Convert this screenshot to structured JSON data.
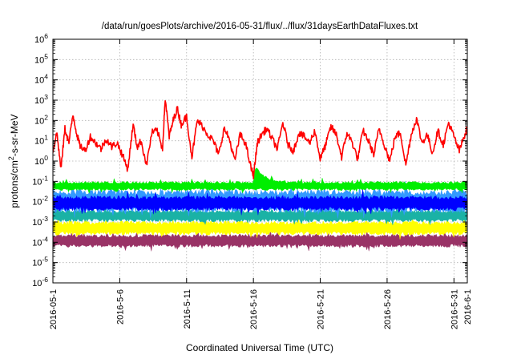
{
  "chart_data": {
    "type": "area",
    "title": "/data/run/goesPlots/archive/2016-05-31/flux/../flux/31daysEarthDataFluxes.txt",
    "xlabel": "Coordinated Universal Time (UTC)",
    "ylabel": "protons/cm²-s-sr-MeV",
    "ylabel_main": "protons/cm",
    "ylabel_sup": "2",
    "ylabel_rest": "-s-sr-MeV",
    "yscale": "log",
    "ylim": [
      1e-06,
      1000000.0
    ],
    "xlim": [
      "2016-05-01",
      "2016-06-01"
    ],
    "grid": true,
    "x_ticks": [
      "2016-05-1",
      "2016-5-6",
      "2016-5-11",
      "2016-5-16",
      "2016-5-21",
      "2016-5-26",
      "2016-5-31",
      "2016-6-1"
    ],
    "x_tick_days": [
      0,
      5,
      10,
      15,
      20,
      25,
      30,
      31
    ],
    "y_ticks": [
      {
        "base": "10",
        "exp": "-6"
      },
      {
        "base": "10",
        "exp": "-5"
      },
      {
        "base": "10",
        "exp": "-4"
      },
      {
        "base": "10",
        "exp": "-3"
      },
      {
        "base": "10",
        "exp": "-2"
      },
      {
        "base": "10",
        "exp": "-1"
      },
      {
        "base": "10",
        "exp": "0"
      },
      {
        "base": "10",
        "exp": "1"
      },
      {
        "base": "10",
        "exp": "2"
      },
      {
        "base": "10",
        "exp": "3"
      },
      {
        "base": "10",
        "exp": "4"
      },
      {
        "base": "10",
        "exp": "5"
      },
      {
        "base": "10",
        "exp": "6"
      }
    ],
    "y_tick_values": [
      -6,
      -5,
      -4,
      -3,
      -2,
      -1,
      0,
      1,
      2,
      3,
      4,
      5,
      6
    ],
    "series": [
      {
        "color": "#993366",
        "band_log10": [
          -4.25,
          -3.6
        ],
        "x_days": [
          0,
          31
        ],
        "spike_days": [
          10.8
        ]
      },
      {
        "color": "#ffff00",
        "band_log10": [
          -3.65,
          -2.95
        ],
        "x_days": [
          0,
          31
        ]
      },
      {
        "color": "#1ab2a5",
        "band_log10": [
          -3.0,
          -2.4
        ],
        "x_days": [
          0,
          31
        ]
      },
      {
        "color": "#3399ff",
        "band_log10": [
          -2.55,
          -1.4
        ],
        "x_days": [
          0,
          31
        ]
      },
      {
        "color": "#0000ff",
        "band_log10": [
          -2.45,
          -1.7
        ],
        "x_days": [
          0,
          31
        ]
      },
      {
        "color": "#00ee00",
        "band_log10": [
          -1.45,
          -1.0
        ],
        "x_days": [
          0,
          31
        ],
        "event_days": [
          15.0,
          17.5
        ],
        "event_peak_log10": 0.1
      },
      {
        "color": "#ff0000",
        "x_days": [
          0,
          0.3,
          0.6,
          0.9,
          1.2,
          1.5,
          1.8,
          2.0,
          2.4,
          2.8,
          3.2,
          3.6,
          4.0,
          4.4,
          4.8,
          5.2,
          5.6,
          6.0,
          6.3,
          6.6,
          7.0,
          7.4,
          7.8,
          8.2,
          8.4,
          8.7,
          9.0,
          9.3,
          9.6,
          10.0,
          10.4,
          10.8,
          11.2,
          11.6,
          12.0,
          12.4,
          12.8,
          13.2,
          13.6,
          14.0,
          14.4,
          14.8,
          15.0,
          15.3,
          15.6,
          16.0,
          16.4,
          16.8,
          17.2,
          17.6,
          18.0,
          18.4,
          18.8,
          19.2,
          19.6,
          20.0,
          20.4,
          20.8,
          21.2,
          21.6,
          22.0,
          22.4,
          22.8,
          23.2,
          23.6,
          24.0,
          24.4,
          24.8,
          25.2,
          25.6,
          26.0,
          26.4,
          26.8,
          27.2,
          27.6,
          28.0,
          28.4,
          28.8,
          29.2,
          29.6,
          30.0,
          30.4,
          30.8,
          31.0
        ],
        "log10_values": [
          0.5,
          1.4,
          -0.4,
          1.6,
          0.9,
          2.3,
          1.3,
          0.8,
          0.5,
          1.2,
          0.9,
          0.6,
          1.1,
          0.7,
          0.9,
          0.3,
          -0.4,
          1.8,
          0.7,
          1.0,
          -0.2,
          1.4,
          1.5,
          0.6,
          3.1,
          1.2,
          2.0,
          2.6,
          1.8,
          2.2,
          0.2,
          2.0,
          1.7,
          1.3,
          1.0,
          0.3,
          1.6,
          1.1,
          0.0,
          1.3,
          0.9,
          -0.3,
          -0.7,
          0.9,
          1.3,
          1.6,
          1.1,
          0.6,
          1.9,
          0.8,
          0.5,
          1.4,
          1.2,
          0.9,
          1.5,
          0.1,
          0.8,
          1.7,
          1.3,
          0.2,
          1.4,
          0.9,
          0.1,
          1.5,
          1.0,
          0.3,
          1.6,
          0.8,
          0.0,
          1.2,
          1.4,
          -0.2,
          1.3,
          2.1,
          0.9,
          1.3,
          0.4,
          1.5,
          0.8,
          1.9,
          1.2,
          0.5,
          1.3,
          1.6
        ]
      }
    ]
  }
}
